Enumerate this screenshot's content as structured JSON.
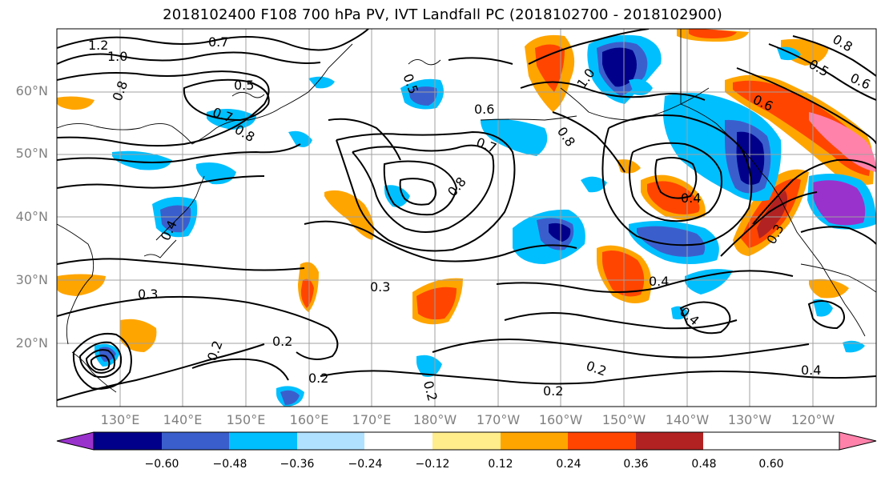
{
  "title": "2018102400 F108 700 hPa PV, IVT Landfall PC (2018102700 - 2018102900)",
  "lat_labels": [
    "60°N",
    "50°N",
    "40°N",
    "30°N",
    "20°N"
  ],
  "lon_labels": [
    "130°E",
    "140°E",
    "150°E",
    "160°E",
    "170°E",
    "180°W",
    "170°W",
    "160°W",
    "150°W",
    "140°W",
    "130°W",
    "120°W"
  ],
  "contour_labels": [
    "1.2",
    "1.0",
    "0.8",
    "0.7",
    "0.5",
    "0.7",
    "0.8",
    "0.5",
    "0.6",
    "0.7",
    "0.8",
    "1.0",
    "0.8",
    "0.5",
    "0.6",
    "0.6",
    "0.8",
    "0.4",
    "0.4",
    "0.3",
    "0.3",
    "0.3",
    "0.4",
    "0.4",
    "0.2",
    "0.2",
    "0.2",
    "0.2",
    "0.2",
    "0.2",
    "0.4"
  ],
  "colorbar": {
    "ticks": [
      "−0.60",
      "−0.48",
      "−0.36",
      "−0.24",
      "−0.12",
      "0.12",
      "0.24",
      "0.36",
      "0.48",
      "0.60"
    ],
    "colors": [
      "#9932cc",
      "#00008b",
      "#3a5fcd",
      "#00bfff",
      "#b0e2ff",
      "#ffffff",
      "#ffec8b",
      "#ffa500",
      "#ff4500",
      "#b22222",
      "#ff82ab"
    ]
  }
}
